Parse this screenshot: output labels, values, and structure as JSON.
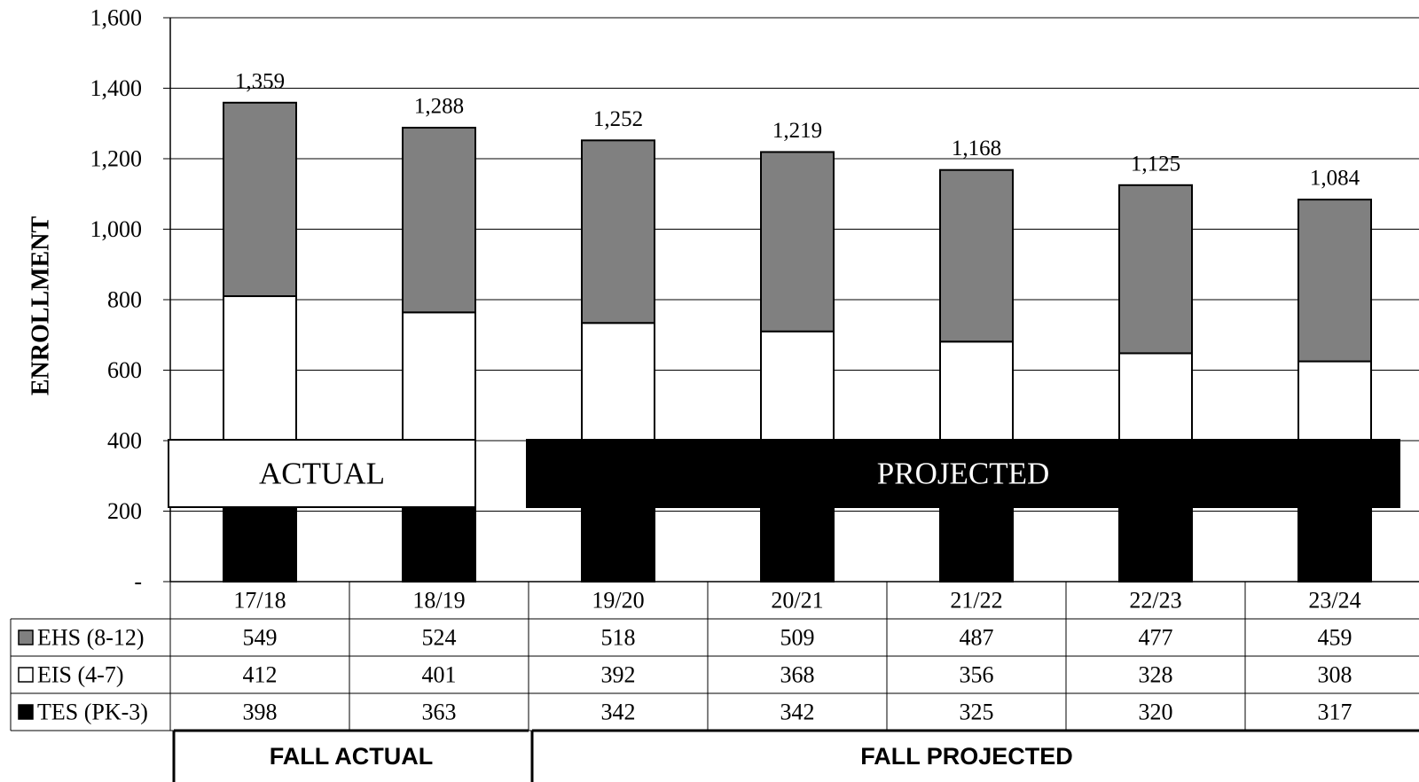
{
  "chart_data": {
    "type": "bar",
    "stacked": true,
    "ylabel": "ENROLLMENT",
    "ylim": [
      0,
      1600
    ],
    "yticks": [
      {
        "value": 0,
        "label": "-"
      },
      {
        "value": 200,
        "label": "200"
      },
      {
        "value": 400,
        "label": "400"
      },
      {
        "value": 600,
        "label": "600"
      },
      {
        "value": 800,
        "label": "800"
      },
      {
        "value": 1000,
        "label": "1,000"
      },
      {
        "value": 1200,
        "label": "1,200"
      },
      {
        "value": 1400,
        "label": "1,400"
      },
      {
        "value": 1600,
        "label": "1,600"
      }
    ],
    "grid": true,
    "categories": [
      "17/18",
      "18/19",
      "19/20",
      "20/21",
      "21/22",
      "22/23",
      "23/24"
    ],
    "series": [
      {
        "name": "TES (PK-3)",
        "color": "#000000",
        "values": [
          398,
          363,
          342,
          342,
          325,
          320,
          317
        ],
        "display": [
          "398",
          "363",
          "342",
          "342",
          "325",
          "320",
          "317"
        ]
      },
      {
        "name": "EIS (4-7)",
        "color": "#ffffff",
        "values": [
          412,
          401,
          392,
          368,
          356,
          328,
          308
        ],
        "display": [
          "412",
          "401",
          "392",
          "368",
          "356",
          "328",
          "308"
        ]
      },
      {
        "name": "EHS (8-12)",
        "color": "#808080",
        "values": [
          549,
          524,
          518,
          509,
          487,
          477,
          459
        ],
        "display": [
          "549",
          "524",
          "518",
          "509",
          "487",
          "477",
          "459"
        ]
      }
    ],
    "totals": [
      "1,359",
      "1,288",
      "1,252",
      "1,219",
      "1,168",
      "1,125",
      "1,084"
    ],
    "table_row_order": [
      2,
      1,
      0
    ],
    "bands": [
      {
        "label": "ACTUAL",
        "start": 0,
        "end": 1,
        "fill": "#ffffff",
        "text_color": "#000000"
      },
      {
        "label": "PROJECTED",
        "start": 2,
        "end": 6,
        "fill": "#000000",
        "text_color": "#ffffff"
      }
    ],
    "sections": [
      {
        "label": "FALL ACTUAL",
        "start": 0,
        "end": 1
      },
      {
        "label": "FALL PROJECTED",
        "start": 2,
        "end": 6
      }
    ]
  }
}
